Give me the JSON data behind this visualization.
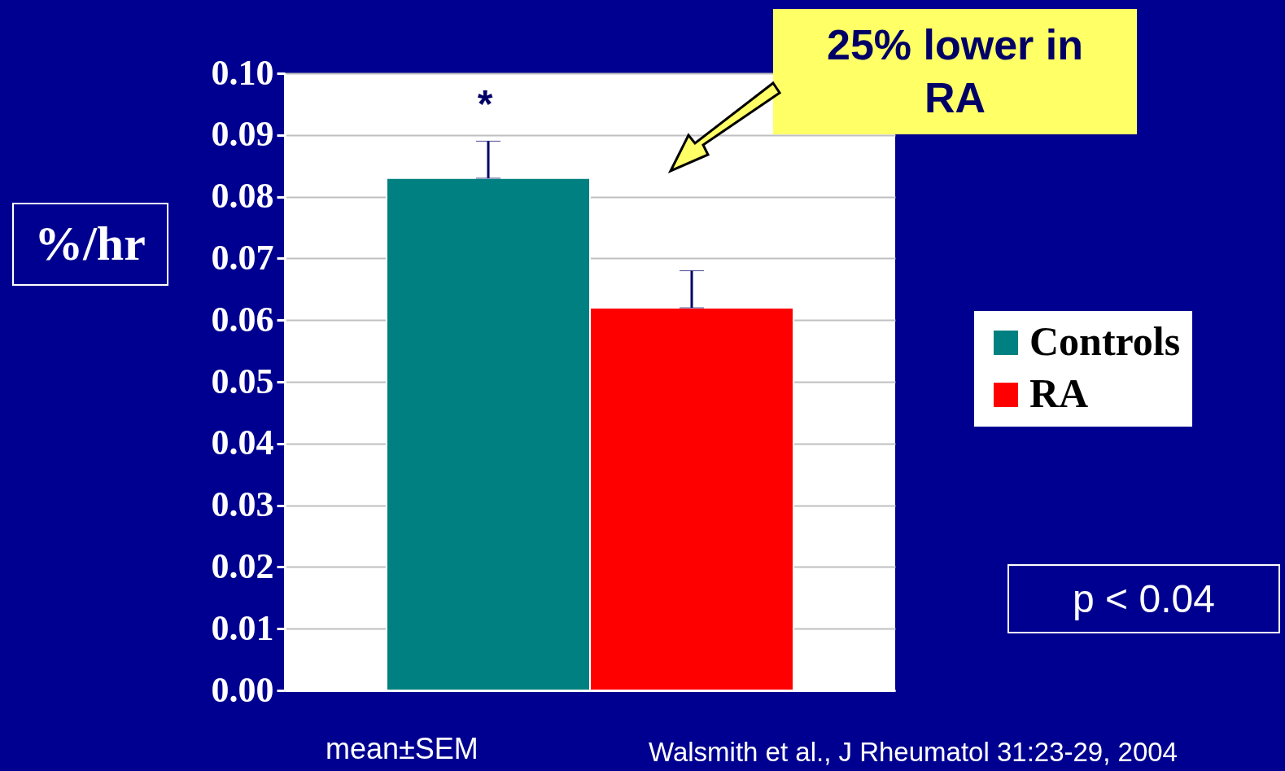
{
  "chart_data": {
    "type": "bar",
    "ylabel": "%/hr",
    "categories": [
      null
    ],
    "series": [
      {
        "name": "Controls",
        "color": "#008080",
        "values": [
          0.083
        ],
        "errors": [
          [
            0.083,
            0.089
          ]
        ]
      },
      {
        "name": "RA",
        "color": "#ff0000",
        "values": [
          0.062
        ],
        "errors": [
          [
            0.062,
            0.068
          ]
        ]
      }
    ],
    "ylim": [
      0,
      0.1
    ],
    "yticks": [
      {
        "value": 0,
        "label": "0.00"
      },
      {
        "value": 0.01,
        "label": "0.01"
      },
      {
        "value": 0.02,
        "label": "0.02"
      },
      {
        "value": 0.03,
        "label": "0.03"
      },
      {
        "value": 0.04,
        "label": "0.04"
      },
      {
        "value": 0.05,
        "label": "0.05"
      },
      {
        "value": 0.06,
        "label": "0.06"
      },
      {
        "value": 0.07,
        "label": "0.07"
      },
      {
        "value": 0.08,
        "label": "0.08"
      },
      {
        "value": 0.09,
        "label": "0.09"
      },
      {
        "value": 0.1,
        "label": "0.10"
      }
    ],
    "grid": true,
    "legend": "right",
    "annotations": [
      "*",
      "25% lower in RA",
      "p < 0.04",
      "mean±SEM",
      "Walsmith et al., J Rheumatol 31:23-29, 2004"
    ]
  }
}
